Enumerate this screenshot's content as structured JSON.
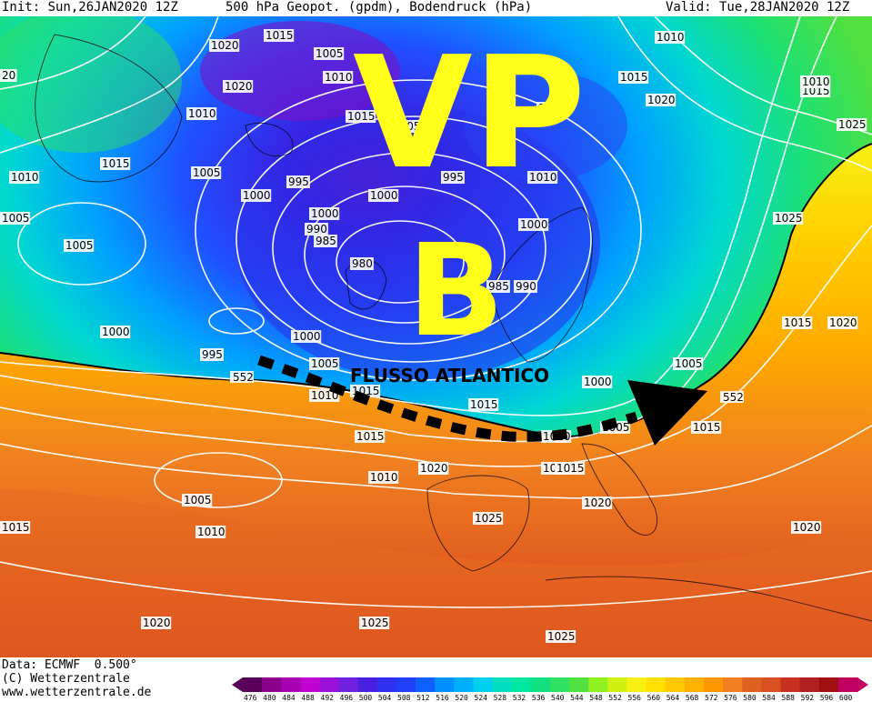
{
  "header": {
    "init": "Init: Sun,26JAN2020 12Z",
    "title": "500 hPa Geopot. (gpdm), Bodendruck (hPa)",
    "valid": "Valid: Tue,28JAN2020 12Z"
  },
  "annotations": {
    "vp": "VP",
    "b": "B",
    "flow": "FLUSSO ATLANTICO",
    "text_color": "#ffff1a"
  },
  "isobar_labels": [
    "1020",
    "1015",
    "1005",
    "1010",
    "1005",
    "1015",
    "1020",
    "1010",
    "1015",
    "1010",
    "1025",
    "1015",
    "1005",
    "1010",
    "1005",
    "1000",
    "995",
    "1000",
    "990",
    "985",
    "995",
    "1010",
    "1000",
    "1000",
    "980",
    "985",
    "990",
    "1025",
    "1000",
    "995",
    "1000",
    "1005",
    "1010",
    "1000",
    "1015",
    "1020",
    "1005",
    "1015",
    "1010",
    "1005",
    "1010",
    "1015",
    "1015",
    "1020",
    "1005",
    "1015",
    "1020",
    "1015",
    "1010",
    "1025",
    "1020",
    "1020",
    "1025",
    "1025",
    "1020",
    "20",
    "1010",
    "1015",
    "1005",
    "1015",
    "1015",
    "1010",
    "1020"
  ],
  "contour_552_label": "552",
  "footer": {
    "data": "Data: ECMWF  0.500°",
    "copyright": "(C) Wetterzentrale",
    "url": "www.wetterzentrale.de"
  },
  "colorbar": {
    "labels": [
      "476",
      "480",
      "484",
      "488",
      "492",
      "496",
      "500",
      "504",
      "508",
      "512",
      "516",
      "520",
      "524",
      "528",
      "532",
      "536",
      "540",
      "544",
      "548",
      "552",
      "556",
      "560",
      "564",
      "568",
      "572",
      "576",
      "580",
      "584",
      "588",
      "592",
      "596",
      "600"
    ],
    "colors": [
      "#5a005a",
      "#8a008a",
      "#a800b0",
      "#c000d0",
      "#9a10d8",
      "#7020e0",
      "#4a20e0",
      "#3030f0",
      "#2040f8",
      "#1060ff",
      "#0090ff",
      "#00b0ff",
      "#00d0f0",
      "#00e0c0",
      "#00e8a0",
      "#10e080",
      "#30e060",
      "#50e040",
      "#90f020",
      "#d0f010",
      "#f8f010",
      "#ffe000",
      "#ffc800",
      "#ffb000",
      "#ff9800",
      "#f08020",
      "#e06020",
      "#d85020",
      "#c83020",
      "#b02020",
      "#a01010",
      "#c00060"
    ]
  },
  "colors": {
    "arrow": "#000000",
    "contour": "#ffffff",
    "boundary_552": "#000000"
  }
}
